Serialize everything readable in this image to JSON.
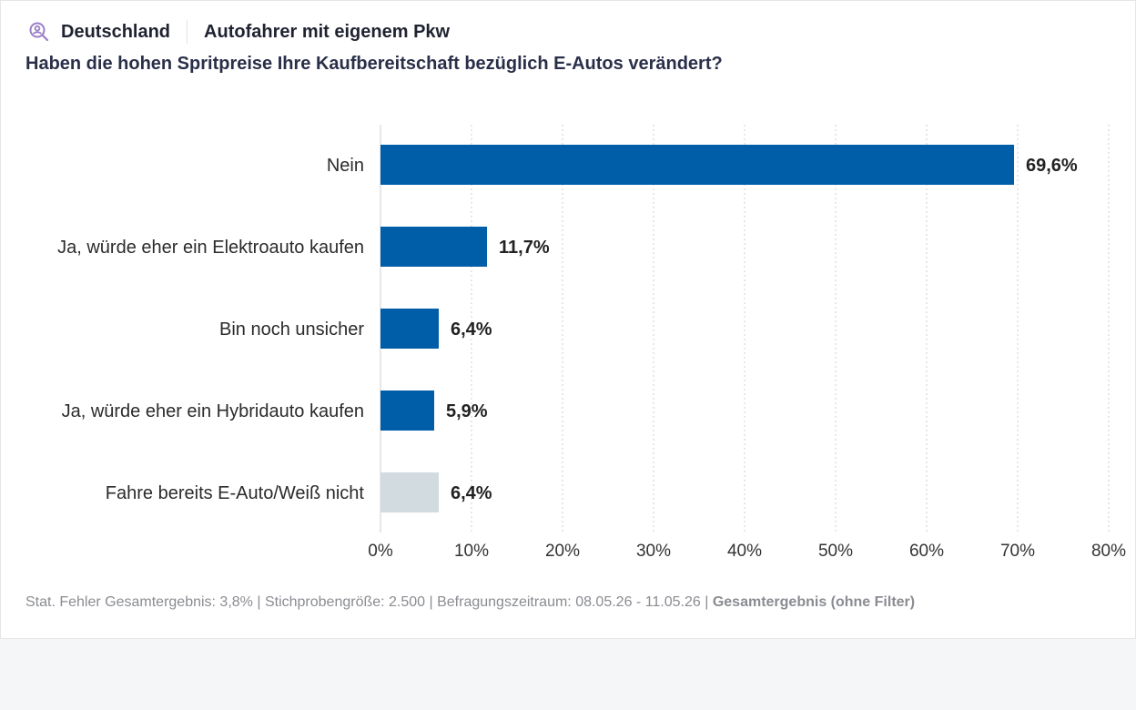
{
  "header": {
    "icon": "search-user-icon",
    "country": "Deutschland",
    "segment": "Autofahrer mit eigenem Pkw"
  },
  "question": "Haben die hohen Spritpreise Ihre Kaufbereitschaft bezüglich E-Autos verändert?",
  "footer": {
    "stats": "Stat. Fehler Gesamtergebnis: 3,8% | Stichprobengröße: 2.500 | Befragungszeitraum: 08.05.26 - 11.05.26 | ",
    "filter": "Gesamtergebnis (ohne Filter)"
  },
  "colors": {
    "primary": "#005ea8",
    "secondary": "#d2dbe0",
    "grid": "#cfcfcf",
    "title": "#2a2f49",
    "accent_icon": "#9b7fc8"
  },
  "chart_data": {
    "type": "bar",
    "orientation": "horizontal",
    "categories": [
      "Nein",
      "Ja, würde eher ein Elektroauto kaufen",
      "Bin noch unsicher",
      "Ja, würde eher ein Hybridauto kaufen",
      "Fahre bereits E-Auto/Weiß nicht"
    ],
    "values": [
      69.6,
      11.7,
      6.4,
      5.9,
      6.4
    ],
    "value_labels": [
      "69,6%",
      "11,7%",
      "6,4%",
      "5,9%",
      "6,4%"
    ],
    "bar_colors": [
      "#005ea8",
      "#005ea8",
      "#005ea8",
      "#005ea8",
      "#d2dbe0"
    ],
    "xlim": [
      0,
      80
    ],
    "x_ticks": [
      0,
      10,
      20,
      30,
      40,
      50,
      60,
      70,
      80
    ],
    "x_tick_labels": [
      "0%",
      "10%",
      "20%",
      "30%",
      "40%",
      "50%",
      "60%",
      "70%",
      "80%"
    ],
    "grid": true,
    "title": "",
    "xlabel": "",
    "ylabel": ""
  }
}
